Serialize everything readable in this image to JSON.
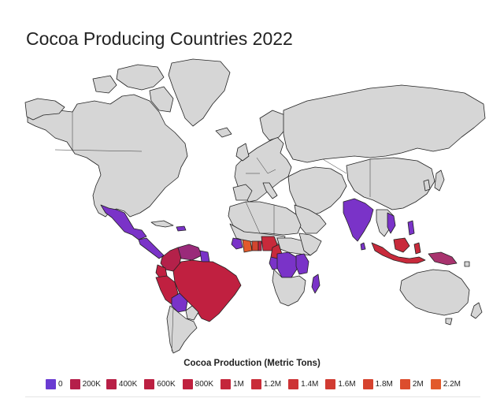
{
  "title": "Cocoa Producing Countries 2022",
  "map": {
    "type": "choropleth",
    "projection": "mercator",
    "default_land_color": "#d6d6d6",
    "border_color": "#222222",
    "background_color": "#ffffff",
    "color_scale_low": "#6a3bd2",
    "color_scale_mid": "#c0213f",
    "color_scale_high": "#e25a2b",
    "highlighted_regions": [
      {
        "name": "Mexico",
        "color": "#7a33c8"
      },
      {
        "name": "Central America",
        "color": "#7a33c8"
      },
      {
        "name": "Colombia",
        "color": "#b4214a"
      },
      {
        "name": "Venezuela",
        "color": "#9a2a7a"
      },
      {
        "name": "Ecuador",
        "color": "#c02040"
      },
      {
        "name": "Peru",
        "color": "#c02040"
      },
      {
        "name": "Brazil",
        "color": "#c02040"
      },
      {
        "name": "Bolivia",
        "color": "#7a33c8"
      },
      {
        "name": "Guyana",
        "color": "#7a33c8"
      },
      {
        "name": "Côte d'Ivoire",
        "color": "#e25a2b"
      },
      {
        "name": "Ghana",
        "color": "#d2452f"
      },
      {
        "name": "Nigeria",
        "color": "#c82a3b"
      },
      {
        "name": "Cameroon",
        "color": "#c82a3b"
      },
      {
        "name": "Liberia",
        "color": "#7a33c8"
      },
      {
        "name": "Sierra Leone",
        "color": "#7a33c8"
      },
      {
        "name": "Guinea",
        "color": "#7a33c8"
      },
      {
        "name": "Togo",
        "color": "#c02040"
      },
      {
        "name": "Gabon",
        "color": "#7a33c8"
      },
      {
        "name": "DR Congo",
        "color": "#7a33c8"
      },
      {
        "name": "Uganda",
        "color": "#7a33c8"
      },
      {
        "name": "Tanzania",
        "color": "#7a33c8"
      },
      {
        "name": "Madagascar",
        "color": "#7a33c8"
      },
      {
        "name": "India",
        "color": "#7a33c8"
      },
      {
        "name": "Vietnam",
        "color": "#7a33c8"
      },
      {
        "name": "Philippines",
        "color": "#7a33c8"
      },
      {
        "name": "Indonesia",
        "color": "#c82a3b"
      },
      {
        "name": "Papua New Guinea",
        "color": "#a8336e"
      },
      {
        "name": "Sri Lanka",
        "color": "#7a33c8"
      }
    ]
  },
  "legend": {
    "title": "Cocoa Production (Metric Tons)",
    "items": [
      {
        "label": "0",
        "color": "#6a3bd2"
      },
      {
        "label": "200K",
        "color": "#b51f4a"
      },
      {
        "label": "400K",
        "color": "#b81f46"
      },
      {
        "label": "600K",
        "color": "#bc2042"
      },
      {
        "label": "800K",
        "color": "#c0213f"
      },
      {
        "label": "1M",
        "color": "#c4263b"
      },
      {
        "label": "1.2M",
        "color": "#c92c38"
      },
      {
        "label": "1.4M",
        "color": "#cd3335"
      },
      {
        "label": "1.6M",
        "color": "#d13b32"
      },
      {
        "label": "1.8M",
        "color": "#d6432f"
      },
      {
        "label": "2M",
        "color": "#dc4d2d"
      },
      {
        "label": "2.2M",
        "color": "#e25a2b"
      }
    ]
  }
}
